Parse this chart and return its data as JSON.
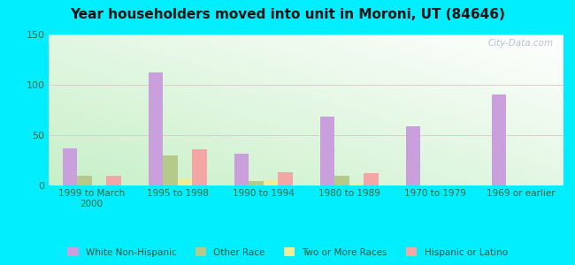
{
  "title": "Year householders moved into unit in Moroni, UT (84646)",
  "categories": [
    "1999 to March\n2000",
    "1995 to 1998",
    "1990 to 1994",
    "1980 to 1989",
    "1970 to 1979",
    "1969 or earlier"
  ],
  "series": {
    "White Non-Hispanic": [
      37,
      112,
      32,
      68,
      59,
      90
    ],
    "Other Race": [
      10,
      30,
      4,
      10,
      0,
      0
    ],
    "Two or More Races": [
      0,
      7,
      5,
      2,
      0,
      0
    ],
    "Hispanic or Latino": [
      10,
      36,
      13,
      12,
      0,
      0
    ]
  },
  "colors": {
    "White Non-Hispanic": "#c9a0dc",
    "Other Race": "#b5c98a",
    "Two or More Races": "#eeee99",
    "Hispanic or Latino": "#f4a5a5"
  },
  "ylim": [
    0,
    150
  ],
  "yticks": [
    0,
    50,
    100,
    150
  ],
  "outer_bg": "#00eeff",
  "bar_width": 0.17,
  "watermark": "City-Data.com"
}
